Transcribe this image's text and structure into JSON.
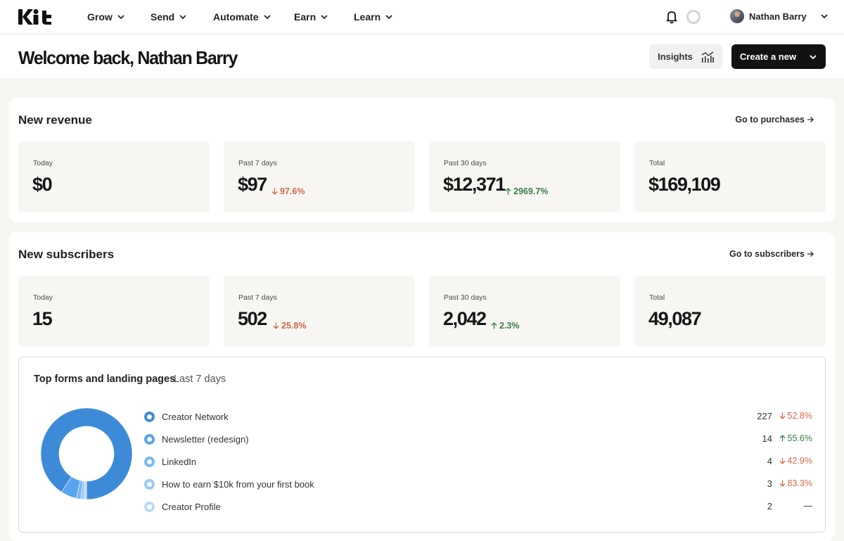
{
  "nav": {
    "logo": "Kit",
    "items": [
      "Grow",
      "Send",
      "Automate",
      "Earn",
      "Learn"
    ],
    "user_name": "Nathan Barry"
  },
  "header": {
    "welcome": "Welcome back, Nathan Barry",
    "insights_label": "Insights",
    "create_label": "Create a new"
  },
  "revenue": {
    "title": "New revenue",
    "link": "Go to purchases",
    "stats": [
      {
        "label": "Today",
        "value": "$0",
        "change": "",
        "direction": "none"
      },
      {
        "label": "Past 7 days",
        "value": "$97",
        "change": "97.6%",
        "direction": "down"
      },
      {
        "label": "Past 30 days",
        "value": "$12,371",
        "change": "2969.7%",
        "direction": "up"
      },
      {
        "label": "Total",
        "value": "$169,109",
        "change": "",
        "direction": "none"
      }
    ]
  },
  "subscribers": {
    "title": "New subscribers",
    "link": "Go to subscribers",
    "stats": [
      {
        "label": "Today",
        "value": "15",
        "change": "",
        "direction": "none"
      },
      {
        "label": "Past 7 days",
        "value": "502",
        "change": "25.8%",
        "direction": "down"
      },
      {
        "label": "Past 30 days",
        "value": "2,042",
        "change": "2.3%",
        "direction": "up"
      },
      {
        "label": "Total",
        "value": "49,087",
        "change": "",
        "direction": "none"
      }
    ]
  },
  "forms": {
    "title": "Top forms and landing pages",
    "range": "Last 7 days",
    "rows": [
      {
        "name": "Creator Network",
        "count": "227",
        "change": "52.8%",
        "direction": "down",
        "color": "#3d8bd8"
      },
      {
        "name": "Newsletter (redesign)",
        "count": "14",
        "change": "55.6%",
        "direction": "up",
        "color": "#57a4ef"
      },
      {
        "name": "LinkedIn",
        "count": "4",
        "change": "42.9%",
        "direction": "down",
        "color": "#78b7f3"
      },
      {
        "name": "How to earn $10k from your first book",
        "count": "3",
        "change": "83.3%",
        "direction": "down",
        "color": "#99c9f6"
      },
      {
        "name": "Creator Profile",
        "count": "2",
        "change": "—",
        "direction": "flat",
        "color": "#b9daf8"
      }
    ]
  },
  "colors": {
    "accent": "#121212",
    "down": "#cc6a4a",
    "up": "#3b7d45"
  }
}
